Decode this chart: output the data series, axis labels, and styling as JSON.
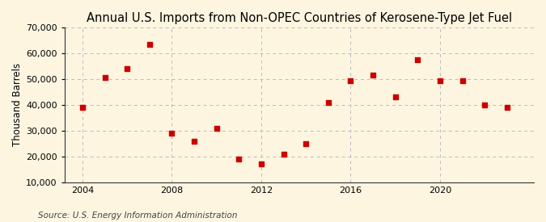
{
  "title": "Annual U.S. Imports from Non-OPEC Countries of Kerosene-Type Jet Fuel",
  "ylabel": "Thousand Barrels",
  "source": "Source: U.S. Energy Information Administration",
  "background_color": "#fdf5e0",
  "plot_background_color": "#fdf5e0",
  "marker_color": "#cc0000",
  "years": [
    2004,
    2005,
    2006,
    2007,
    2008,
    2009,
    2010,
    2011,
    2012,
    2013,
    2014,
    2015,
    2016,
    2017,
    2018,
    2019,
    2020,
    2021,
    2022,
    2023
  ],
  "values": [
    39000,
    50500,
    54000,
    63500,
    29000,
    26000,
    31000,
    19000,
    17000,
    21000,
    25000,
    41000,
    49500,
    51500,
    43000,
    57500,
    49500,
    49500,
    40000,
    39000
  ],
  "xlim": [
    2003.2,
    2024.2
  ],
  "ylim": [
    10000,
    70000
  ],
  "yticks": [
    10000,
    20000,
    30000,
    40000,
    50000,
    60000,
    70000
  ],
  "xticks": [
    2004,
    2008,
    2012,
    2016,
    2020
  ],
  "grid_color": "#bbbbbb",
  "title_fontsize": 10.5,
  "label_fontsize": 8.5,
  "tick_fontsize": 8,
  "source_fontsize": 7.5
}
